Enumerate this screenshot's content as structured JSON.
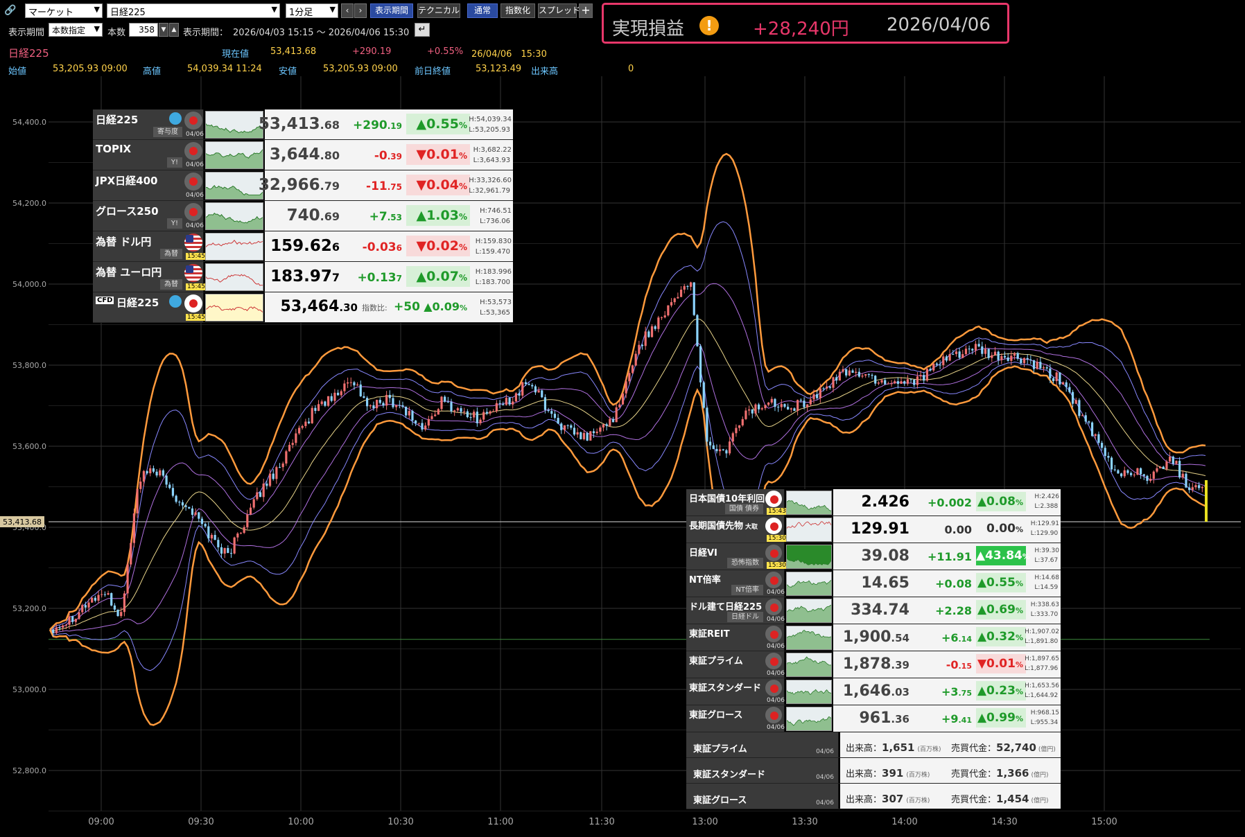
{
  "toolbar": {
    "market_select": "マーケット",
    "symbol_select": "日経225",
    "interval_select": "1分足",
    "btn_period": "表示期間",
    "btn_technical": "テクニカル",
    "btn_normal": "通常",
    "btn_index": "指数化",
    "btn_spread": "スプレッド",
    "btn_add": "+"
  },
  "settings": {
    "period_label": "表示期間",
    "period_mode": "本数指定",
    "count_label": "本数",
    "count_value": "358",
    "range_label": "表示期間：",
    "range_value": "2026/04/03 15:15 ～ 2026/04/06 15:30"
  },
  "pnl": {
    "label": "実現損益",
    "value": "+28,240円",
    "date": "2026/04/06"
  },
  "info": {
    "symbol": "日経225",
    "current_label": "現在値",
    "current": "53,413.68",
    "change": "+290.19",
    "change_pct": "+0.55%",
    "datetime": "26/04/06　15:30",
    "open_label": "始値",
    "open": "53,205.93 09:00",
    "high_label": "高値",
    "high": "54,039.34 11:24",
    "low_label": "安値",
    "low": "53,205.93 09:00",
    "prev_label": "前日終値",
    "prev": "53,123.49",
    "vol_label": "出来高",
    "vol": "0"
  },
  "chart_data": {
    "type": "candlestick",
    "y_ticks": [
      "54,400.0",
      "54,200.0",
      "54,000.0",
      "53,800.0",
      "53,600.0",
      "53,400.0",
      "53,200.0",
      "53,000.0",
      "52,800.0"
    ],
    "y_values": [
      54400,
      54200,
      54000,
      53800,
      53600,
      53400,
      53200,
      53000,
      52800
    ],
    "x_ticks": [
      "09:00",
      "09:30",
      "10:00",
      "10:30",
      "11:00",
      "11:30",
      "13:00",
      "13:30",
      "14:00",
      "14:30",
      "15:00"
    ],
    "current_price_label": "53,413.68",
    "current_price": 53413.68,
    "prev_close": 53123.49,
    "colors": {
      "up": "#f07070",
      "down": "#8cd4ff",
      "band_outer": "#ff9a3c",
      "band_mid": "#8888ff",
      "band_inner": "#b070e0",
      "ma": "#e8d48a"
    },
    "path": [
      53150,
      53170,
      53210,
      53240,
      53180,
      53520,
      53540,
      53480,
      53440,
      53380,
      53330,
      53420,
      53500,
      53560,
      53630,
      53700,
      53720,
      53770,
      53690,
      53720,
      53690,
      53640,
      53710,
      53690,
      53670,
      53690,
      53720,
      53760,
      53690,
      53640,
      53620,
      53640,
      53690,
      53840,
      53900,
      53960,
      54010,
      53600,
      53580,
      53680,
      53700,
      53710,
      53700,
      53720,
      53760,
      53790,
      53770,
      53760,
      53760,
      53770,
      53800,
      53830,
      53840,
      53820,
      53820,
      53810,
      53780,
      53760,
      53680,
      53600,
      53530,
      53540,
      53520,
      53580,
      53500,
      53510
    ]
  },
  "index_panel": {
    "rows": [
      {
        "name": "日経225",
        "tag": "寄与度",
        "time": "04/06",
        "price_main": "53,413",
        "price_dec": ".68",
        "chg_main": "+290",
        "chg_dec": ".19",
        "pct": "▲0.55",
        "dir": "up",
        "hi": "H:54,039.34",
        "lo": "L:53,205.93"
      },
      {
        "name": "TOPIX",
        "tag": "Y!",
        "time": "04/06",
        "price_main": "3,644",
        "price_dec": ".80",
        "chg_main": "-0",
        "chg_dec": ".39",
        "pct": "▼0.01",
        "dir": "dn",
        "hi": "H:3,682.22",
        "lo": "L:3,643.93"
      },
      {
        "name": "JPX日経400",
        "tag": "",
        "time": "04/06",
        "price_main": "32,966",
        "price_dec": ".79",
        "chg_main": "-11",
        "chg_dec": ".75",
        "pct": "▼0.04",
        "dir": "dn",
        "hi": "H:33,326.60",
        "lo": "L:32,961.79"
      },
      {
        "name": "グロース250",
        "tag": "Y!",
        "time": "04/06",
        "price_main": "740",
        "price_dec": ".69",
        "chg_main": "+7",
        "chg_dec": ".53",
        "pct": "▲1.03",
        "dir": "up",
        "hi": "H:746.51",
        "lo": "L:736.06"
      },
      {
        "name": "為替 ドル円",
        "tag": "為替",
        "time": "15:45",
        "price_main": "159.62",
        "price_dec": "6",
        "chg_main": "-0.03",
        "chg_dec": "6",
        "pct": "▼0.02",
        "dir": "dn",
        "hi": "H:159.830",
        "lo": "L:159.470"
      },
      {
        "name": "為替 ユーロ円",
        "tag": "為替",
        "time": "15:45",
        "price_main": "183.97",
        "price_dec": "7",
        "chg_main": "+0.13",
        "chg_dec": "7",
        "pct": "▲0.07",
        "dir": "up",
        "hi": "H:183.996",
        "lo": "L:183.700"
      }
    ],
    "cfd": {
      "badge": "CFD",
      "name": "日経225",
      "time": "15:45",
      "price_main": "53,464",
      "price_dec": ".30",
      "ratio_label": "指数比:",
      "ratio": "+50",
      "pct": "▲0.09",
      "hi": "H:53,573",
      "lo": "L:53,365"
    }
  },
  "bond_panel": {
    "rows": [
      {
        "name": "日本国債10年利回り",
        "tag": "国債 債券",
        "time": "15:43",
        "price": "2.426",
        "chg": "+0.002",
        "pct": "▲0.08",
        "dir": "up",
        "hi": "H:2.426",
        "lo": "L:2.388"
      },
      {
        "name": "長期国債先物",
        "sub": "大取",
        "tag": "",
        "time": "15:30",
        "price": "129.91",
        "chg": "0.00",
        "pct": "0.00",
        "dir": "flat",
        "hi": "H:129.91",
        "lo": "L:129.90"
      },
      {
        "name": "日経VI",
        "tag": "恐怖指数",
        "time": "15:30",
        "price": "39.08",
        "chg": "+11.91",
        "pct": "▲43.84",
        "dir": "big",
        "hi": "H:39.30",
        "lo": "L:37.67"
      },
      {
        "name": "NT倍率",
        "tag": "NT倍率",
        "time": "04/06",
        "price": "14.65",
        "chg": "+0.08",
        "pct": "▲0.55",
        "dir": "up",
        "hi": "H:14.68",
        "lo": "L:14.59"
      },
      {
        "name": "ドル建て日経225",
        "tag": "日経ドル",
        "time": "04/06",
        "price": "334.74",
        "chg": "+2.28",
        "pct": "▲0.69",
        "dir": "up",
        "hi": "H:338.63",
        "lo": "L:333.70"
      },
      {
        "name": "東証REIT",
        "tag": "",
        "time": "04/06",
        "price": "1,900",
        "price_dec": ".54",
        "chg": "+6",
        "chg_dec": ".14",
        "pct": "▲0.32",
        "dir": "up",
        "hi": "H:1,907.02",
        "lo": "L:1,891.80"
      },
      {
        "name": "東証プライム",
        "tag": "",
        "time": "04/06",
        "price": "1,878",
        "price_dec": ".39",
        "chg": "-0",
        "chg_dec": ".15",
        "pct": "▼0.01",
        "dir": "dn",
        "hi": "H:1,897.65",
        "lo": "L:1,877.96"
      },
      {
        "name": "東証スタンダード",
        "tag": "",
        "time": "04/06",
        "price": "1,646",
        "price_dec": ".03",
        "chg": "+3",
        "chg_dec": ".75",
        "pct": "▲0.23",
        "dir": "up",
        "hi": "H:1,653.56",
        "lo": "L:1,644.92"
      },
      {
        "name": "東証グロース",
        "tag": "",
        "time": "04/06",
        "price": "961",
        "price_dec": ".36",
        "chg": "+9",
        "chg_dec": ".41",
        "pct": "▲0.99",
        "dir": "up",
        "hi": "H:968.15",
        "lo": "L:955.34"
      }
    ],
    "volumes": [
      {
        "name": "東証プライム",
        "time": "04/06",
        "vol_label": "出来高：",
        "vol": "1,651",
        "vol_unit": "(百万株)",
        "val_label": "売買代金：",
        "val": "52,740",
        "val_unit": "(億円)"
      },
      {
        "name": "東証スタンダード",
        "time": "04/06",
        "vol_label": "出来高：",
        "vol": "391",
        "vol_unit": "(百万株)",
        "val_label": "売買代金：",
        "val": "1,366",
        "val_unit": "(億円)"
      },
      {
        "name": "東証グロース",
        "time": "04/06",
        "vol_label": "出来高：",
        "vol": "307",
        "vol_unit": "(百万株)",
        "val_label": "売買代金：",
        "val": "1,454",
        "val_unit": "(億円)"
      }
    ],
    "pct_suffix": "%"
  }
}
